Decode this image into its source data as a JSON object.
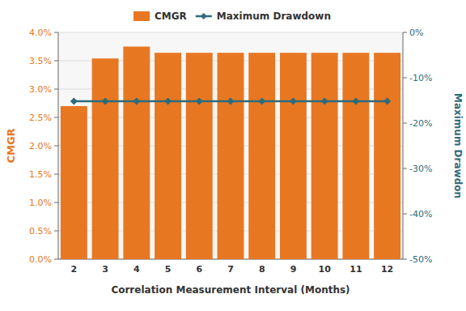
{
  "chart_data": {
    "type": "bar",
    "categories": [
      "2",
      "3",
      "4",
      "5",
      "6",
      "7",
      "8",
      "9",
      "10",
      "11",
      "12"
    ],
    "series": [
      {
        "name": "CMGR",
        "type": "bar",
        "color": "#E87722",
        "values": [
          0.027,
          0.0354,
          0.0375,
          0.0364,
          0.0364,
          0.0364,
          0.0364,
          0.0364,
          0.0364,
          0.0364,
          0.0364
        ]
      },
      {
        "name": "Maximum Drawdown",
        "type": "line",
        "axis": "y2",
        "color": "#2E6B7A",
        "marker": "diamond",
        "values": [
          -0.152,
          -0.152,
          -0.152,
          -0.152,
          -0.152,
          -0.152,
          -0.152,
          -0.152,
          -0.152,
          -0.152,
          -0.152
        ]
      }
    ],
    "xlabel": "Correlation Measurement Interval (Months)",
    "ylabel": "CMGR",
    "y2label": "Maximum Drawdon",
    "ylim": [
      0.0,
      0.04
    ],
    "yticks": [
      {
        "value": 0.0,
        "label": "0.0%"
      },
      {
        "value": 0.005,
        "label": "0.5%"
      },
      {
        "value": 0.01,
        "label": "1.0%"
      },
      {
        "value": 0.015,
        "label": "1.5%"
      },
      {
        "value": 0.02,
        "label": "2.0%"
      },
      {
        "value": 0.025,
        "label": "2.5%"
      },
      {
        "value": 0.03,
        "label": "3.0%"
      },
      {
        "value": 0.035,
        "label": "3.5%"
      },
      {
        "value": 0.04,
        "label": "4.0%"
      }
    ],
    "y2lim": [
      -0.5,
      0.0
    ],
    "y2ticks": [
      {
        "value": 0.0,
        "label": "0%"
      },
      {
        "value": -0.1,
        "label": "-10%"
      },
      {
        "value": -0.2,
        "label": "-20%"
      },
      {
        "value": -0.3,
        "label": "-30%"
      },
      {
        "value": -0.4,
        "label": "-40%"
      },
      {
        "value": -0.5,
        "label": "-50%"
      }
    ],
    "grid": true,
    "legend": "top"
  }
}
